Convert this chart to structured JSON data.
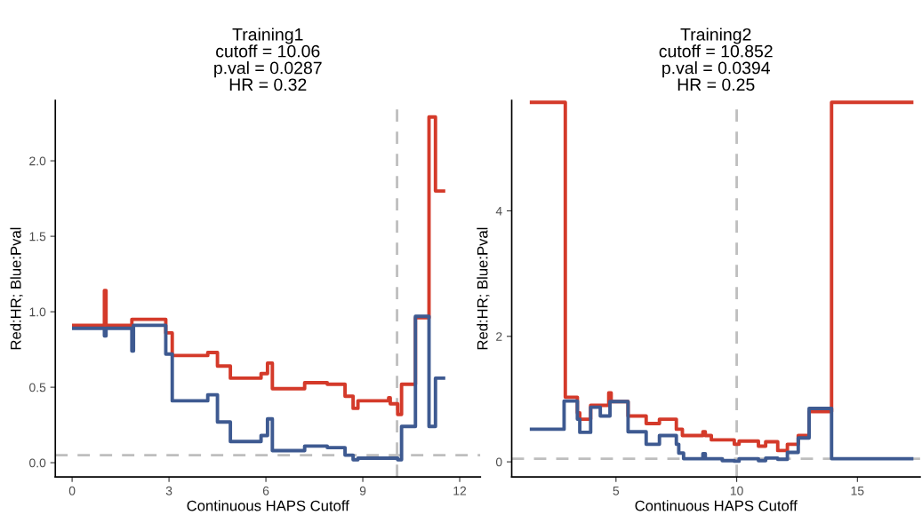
{
  "chart_data": [
    {
      "type": "step",
      "title": "Training1\ncutoff = 10.06\np.val = 0.0287\nHR = 0.32",
      "xlabel": "Continuous HAPS Cutoff",
      "ylabel": "Red:HR; Blue:Pval",
      "xlim": [
        -0.52,
        12.64
      ],
      "xticks": [
        0,
        3,
        6,
        9,
        12
      ],
      "ylim": [
        -0.094,
        2.4
      ],
      "yticks": [
        {
          "value": 0,
          "label": "0.0"
        },
        {
          "value": 0.5,
          "label": "0.5"
        },
        {
          "value": 1,
          "label": "1.0"
        },
        {
          "value": 1.5,
          "label": "1.5"
        },
        {
          "value": 2,
          "label": "2.0"
        }
      ],
      "grid": false,
      "legend": false,
      "ref_lines": [
        {
          "axis": "y",
          "value": 0.05,
          "color": "#bebebe",
          "line_style": "dashed"
        },
        {
          "axis": "x",
          "value": 10.06,
          "color": "#bebebe",
          "line_style": "dashed"
        }
      ],
      "series": [
        {
          "color": "#d43a2a",
          "x": [
            0.05,
            1.0,
            1.05,
            1.85,
            2.9,
            3.1,
            4.2,
            4.5,
            4.9,
            5.85,
            6.05,
            6.2,
            7.2,
            7.9,
            8.45,
            8.7,
            8.85,
            9.8,
            9.85,
            10.08,
            10.2,
            10.63,
            11.05,
            11.25,
            11.5
          ],
          "values": [
            0.91,
            1.14,
            0.91,
            0.95,
            0.86,
            0.71,
            0.73,
            0.64,
            0.56,
            0.59,
            0.66,
            0.49,
            0.53,
            0.52,
            0.44,
            0.36,
            0.41,
            0.43,
            0.39,
            0.32,
            0.52,
            0.96,
            2.29,
            1.8,
            1.8
          ]
        },
        {
          "color": "#3e5a91",
          "x": [
            0.05,
            1.0,
            1.05,
            1.85,
            1.9,
            2.9,
            3.1,
            4.2,
            4.5,
            4.9,
            5.85,
            6.05,
            6.2,
            7.2,
            7.9,
            8.45,
            8.7,
            8.85,
            10.08,
            10.2,
            10.63,
            11.05,
            11.25,
            11.5
          ],
          "values": [
            0.89,
            0.84,
            0.89,
            0.74,
            0.91,
            0.72,
            0.41,
            0.45,
            0.27,
            0.14,
            0.18,
            0.29,
            0.08,
            0.11,
            0.1,
            0.05,
            0.02,
            0.03,
            0.02,
            0.24,
            0.97,
            0.24,
            0.56,
            0.56
          ]
        }
      ]
    },
    {
      "type": "step",
      "title": "Training2\ncutoff = 10.852\np.val = 0.0394\nHR = 0.25",
      "xlabel": "Continuous HAPS Cutoff",
      "ylabel": "Red:HR; Blue:Pval",
      "xlim": [
        0.68,
        17.6
      ],
      "xticks": [
        5,
        10,
        15
      ],
      "ylim": [
        -0.24,
        5.76
      ],
      "yticks": [
        0,
        2,
        4
      ],
      "grid": false,
      "legend": false,
      "ref_lines": [
        {
          "axis": "y",
          "value": 0.05,
          "color": "#bebebe",
          "line_style": "dashed"
        },
        {
          "axis": "x",
          "value": 10,
          "color": "#bebebe",
          "line_style": "dashed"
        }
      ],
      "series": [
        {
          "color": "#d43a2a",
          "x": [
            1.5,
            2.9,
            3.4,
            3.5,
            3.95,
            4.7,
            4.8,
            5.5,
            6.25,
            6.8,
            7.5,
            7.75,
            8.6,
            8.7,
            8.95,
            9.9,
            10.1,
            10.9,
            11.2,
            11.7,
            12.1,
            12.55,
            13.0,
            13.93,
            17.25
          ],
          "values": [
            5.73,
            1.03,
            0.78,
            0.68,
            0.9,
            1.1,
            0.96,
            0.73,
            0.61,
            0.68,
            0.52,
            0.42,
            0.48,
            0.42,
            0.35,
            0.28,
            0.33,
            0.25,
            0.32,
            0.18,
            0.28,
            0.42,
            0.8,
            5.73,
            5.73
          ]
        },
        {
          "color": "#3e5a91",
          "x": [
            1.5,
            2.85,
            3.4,
            3.5,
            3.95,
            4.35,
            4.75,
            5.5,
            6.25,
            6.8,
            7.5,
            7.6,
            7.8,
            8.6,
            8.7,
            9.4,
            9.9,
            10.1,
            10.9,
            11.2,
            11.7,
            12.1,
            12.55,
            13.0,
            13.93,
            17.25
          ],
          "values": [
            0.52,
            0.97,
            0.68,
            0.47,
            0.87,
            0.73,
            0.96,
            0.48,
            0.28,
            0.42,
            0.28,
            0.14,
            0.05,
            0.13,
            0.05,
            0.02,
            0.01,
            0.05,
            0.02,
            0.06,
            0.04,
            0.15,
            0.38,
            0.85,
            0.05,
            0.05
          ]
        }
      ]
    }
  ]
}
